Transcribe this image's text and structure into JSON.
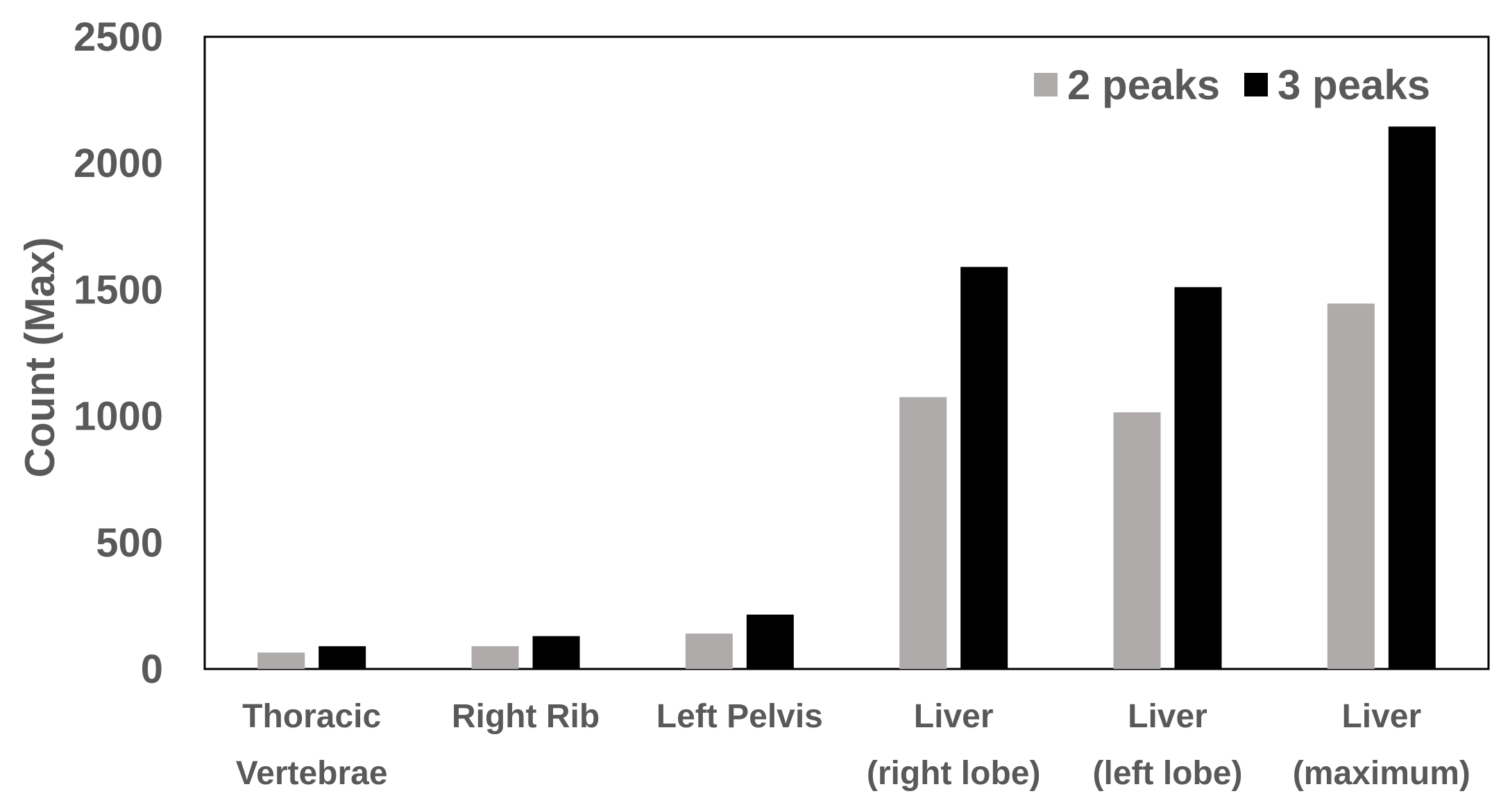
{
  "chart_data": {
    "type": "bar",
    "title": "",
    "xlabel": "",
    "ylabel": "Count (Max)",
    "ylim": [
      0,
      2500
    ],
    "yticks": [
      0,
      500,
      1000,
      1500,
      2000,
      2500
    ],
    "grid": false,
    "legend_position": "top-right",
    "categories": [
      [
        "Thoracic",
        "Vertebrae"
      ],
      [
        "Right Rib"
      ],
      [
        "Left Pelvis"
      ],
      [
        "Liver",
        "(right lobe)"
      ],
      [
        "Liver",
        "(left lobe)"
      ],
      [
        "Liver",
        "(maximum)"
      ]
    ],
    "series": [
      {
        "name": "2 peaks",
        "color": "#afabab",
        "values": [
          65,
          90,
          140,
          1075,
          1015,
          1445
        ]
      },
      {
        "name": "3 peaks",
        "color": "#000000",
        "values": [
          90,
          130,
          215,
          1590,
          1510,
          2145
        ]
      }
    ]
  }
}
